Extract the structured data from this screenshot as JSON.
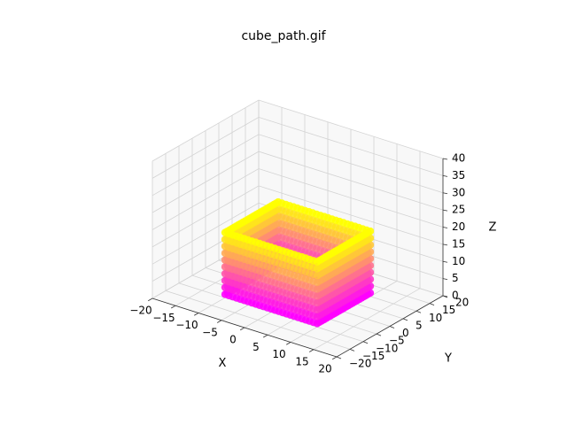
{
  "chart_data": {
    "type": "scatter",
    "projection": "3d",
    "title": "cube_path.gif",
    "xlabel": "X",
    "ylabel": "Y",
    "zlabel": "Z",
    "xlim": [
      -20,
      20
    ],
    "ylim": [
      -20,
      20
    ],
    "zlim": [
      0,
      40
    ],
    "xticks": [
      -20,
      -15,
      -10,
      -5,
      0,
      5,
      10,
      15,
      20
    ],
    "yticks": [
      -20,
      -15,
      -10,
      -5,
      0,
      5,
      10,
      15,
      20
    ],
    "zticks": [
      0,
      5,
      10,
      15,
      20,
      25,
      30,
      35,
      40
    ],
    "grid": true,
    "colormap": "spring",
    "color_low": "#ff00ff",
    "color_high": "#ffff00",
    "series": [
      {
        "path": "square",
        "corners": [
          [
            -10,
            -10
          ],
          [
            10,
            -10
          ],
          [
            10,
            10
          ],
          [
            -10,
            10
          ]
        ],
        "z_values": [
          1,
          3,
          5,
          7,
          9,
          11,
          13,
          15,
          17,
          19
        ]
      }
    ]
  }
}
